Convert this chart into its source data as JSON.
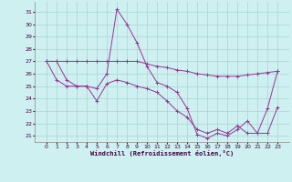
{
  "xlabel": "Windchill (Refroidissement éolien,°C)",
  "background_color": "#cef0f0",
  "grid_color": "#aad4d4",
  "line_color": "#993399",
  "x": [
    0,
    1,
    2,
    3,
    4,
    5,
    6,
    7,
    8,
    9,
    10,
    11,
    12,
    13,
    14,
    15,
    16,
    17,
    18,
    19,
    20,
    21,
    22,
    23
  ],
  "ylim": [
    20.5,
    31.8
  ],
  "yticks": [
    21,
    22,
    23,
    24,
    25,
    26,
    27,
    28,
    29,
    30,
    31
  ],
  "xticks": [
    0,
    1,
    2,
    3,
    4,
    5,
    6,
    7,
    8,
    9,
    10,
    11,
    12,
    13,
    14,
    15,
    16,
    17,
    18,
    19,
    20,
    21,
    22,
    23
  ],
  "line1": [
    27.0,
    27.0,
    27.0,
    27.0,
    27.0,
    27.0,
    27.0,
    27.0,
    27.0,
    27.0,
    26.8,
    26.6,
    26.5,
    26.3,
    26.2,
    26.0,
    25.9,
    25.8,
    25.8,
    25.8,
    25.9,
    26.0,
    26.1,
    26.2
  ],
  "line2": [
    27.0,
    27.0,
    25.5,
    25.0,
    25.0,
    24.8,
    26.0,
    31.2,
    30.0,
    28.5,
    26.6,
    25.3,
    25.0,
    24.5,
    23.2,
    21.1,
    20.8,
    21.2,
    21.0,
    21.5,
    22.2,
    21.2,
    23.2,
    26.2
  ],
  "line3": [
    27.0,
    25.5,
    25.0,
    25.0,
    25.0,
    23.8,
    25.2,
    25.5,
    25.3,
    25.0,
    24.8,
    24.5,
    23.8,
    23.0,
    22.5,
    21.5,
    21.2,
    21.5,
    21.2,
    21.8,
    21.2,
    21.2,
    21.2,
    23.3
  ]
}
